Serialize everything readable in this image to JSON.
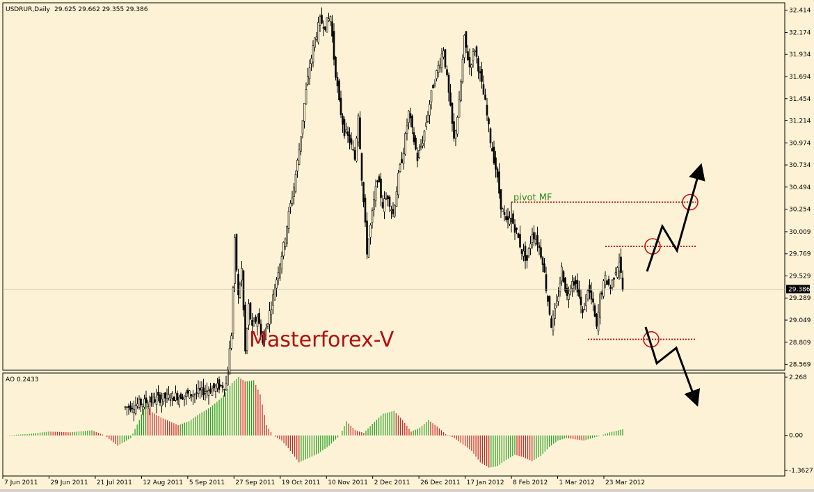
{
  "chart_data": [
    {
      "type": "candlestick",
      "title": "USDRUR,Daily",
      "ohlc_header": "29.625 29.662 29.355 29.386",
      "current_price": "29.386",
      "y_ticks": [
        "32.414",
        "32.174",
        "31.934",
        "31.694",
        "31.454",
        "31.214",
        "30.974",
        "30.734",
        "30.494",
        "30.254",
        "30.009",
        "29.769",
        "29.529",
        "29.289",
        "29.049",
        "28.809",
        "28.569"
      ],
      "ylim": [
        28.52,
        32.48
      ],
      "x_ticks": [
        "7 Jun 2011",
        "29 Jun 2011",
        "21 Jul 2011",
        "12 Aug 2011",
        "5 Sep 2011",
        "27 Sep 2011",
        "19 Oct 2011",
        "10 Nov 2011",
        "2 Dec 2011",
        "26 Dec 2011",
        "17 Jan 2012",
        "8 Feb 2012",
        "1 Mar 2012",
        "23 Mar 2012"
      ],
      "path_points": [
        [
          0,
          28.1
        ],
        [
          20,
          28.2
        ],
        [
          40,
          28.25
        ],
        [
          58,
          28.35
        ],
        [
          61,
          28.9
        ],
        [
          63,
          29.9
        ],
        [
          65,
          29.3
        ],
        [
          67,
          29.6
        ],
        [
          69,
          28.7
        ],
        [
          71,
          29.2
        ],
        [
          73,
          28.95
        ],
        [
          76,
          29.1
        ],
        [
          79,
          28.8
        ],
        [
          82,
          29.05
        ],
        [
          85,
          29.3
        ],
        [
          88,
          29.6
        ],
        [
          91,
          29.85
        ],
        [
          94,
          30.2
        ],
        [
          97,
          30.5
        ],
        [
          100,
          30.9
        ],
        [
          103,
          31.4
        ],
        [
          106,
          31.8
        ],
        [
          109,
          32.1
        ],
        [
          112,
          32.3
        ],
        [
          115,
          32.25
        ],
        [
          118,
          32.35
        ],
        [
          120,
          31.9
        ],
        [
          123,
          31.4
        ],
        [
          126,
          31.1
        ],
        [
          129,
          31.0
        ],
        [
          132,
          30.8
        ],
        [
          134,
          31.3
        ],
        [
          136,
          30.6
        ],
        [
          139,
          29.8
        ],
        [
          142,
          30.2
        ],
        [
          145,
          30.6
        ],
        [
          148,
          30.3
        ],
        [
          151,
          30.4
        ],
        [
          154,
          30.2
        ],
        [
          157,
          30.6
        ],
        [
          160,
          30.9
        ],
        [
          163,
          31.3
        ],
        [
          166,
          31.0
        ],
        [
          168,
          30.8
        ],
        [
          171,
          31.0
        ],
        [
          174,
          31.3
        ],
        [
          177,
          31.6
        ],
        [
          180,
          31.8
        ],
        [
          183,
          32.0
        ],
        [
          186,
          31.5
        ],
        [
          189,
          31.0
        ],
        [
          192,
          31.4
        ],
        [
          195,
          32.1
        ],
        [
          198,
          31.8
        ],
        [
          201,
          32.0
        ],
        [
          204,
          31.7
        ],
        [
          207,
          31.4
        ],
        [
          210,
          31.0
        ],
        [
          213,
          30.7
        ],
        [
          216,
          30.3
        ],
        [
          219,
          30.1
        ],
        [
          222,
          30.15
        ],
        [
          225,
          30.0
        ],
        [
          228,
          29.8
        ],
        [
          231,
          29.7
        ],
        [
          234,
          30.0
        ],
        [
          237,
          29.9
        ],
        [
          240,
          29.7
        ],
        [
          242,
          29.4
        ],
        [
          245,
          29.0
        ],
        [
          248,
          29.2
        ],
        [
          251,
          29.6
        ],
        [
          254,
          29.3
        ],
        [
          257,
          29.5
        ],
        [
          260,
          29.4
        ],
        [
          263,
          29.1
        ],
        [
          266,
          29.4
        ],
        [
          269,
          29.2
        ],
        [
          271,
          28.95
        ],
        [
          273,
          29.3
        ],
        [
          276,
          29.5
        ],
        [
          279,
          29.4
        ],
        [
          282,
          29.6
        ],
        [
          284,
          29.7
        ],
        [
          286,
          29.38
        ]
      ],
      "annotations": {
        "pivot_label": "pivot MF",
        "watermark": "Masterforex-V",
        "pivot_level": 30.33,
        "upper_level": 29.85,
        "lower_level": 28.84
      },
      "colors": {
        "background": "#fdf2d5",
        "candle": "#000000",
        "dotted_level": "#cc1111",
        "circle": "#cc1111",
        "watermark": "#b01010",
        "pivot_label": "#2e8b22"
      }
    },
    {
      "type": "bar",
      "indicator": "AO",
      "label": "AO 0.2433",
      "y_ticks": [
        "2.268",
        "0.00",
        "-1.3627"
      ],
      "ylim": [
        -1.3627,
        2.268
      ],
      "series_points": [
        [
          0,
          0.0
        ],
        [
          10,
          0.05
        ],
        [
          20,
          0.15
        ],
        [
          30,
          0.12
        ],
        [
          40,
          0.2
        ],
        [
          46,
          0.0
        ],
        [
          52,
          -0.4
        ],
        [
          58,
          -0.1
        ],
        [
          62,
          0.6
        ],
        [
          65,
          1.25
        ],
        [
          68,
          0.9
        ],
        [
          72,
          0.7
        ],
        [
          76,
          0.55
        ],
        [
          80,
          0.4
        ],
        [
          85,
          0.55
        ],
        [
          90,
          0.85
        ],
        [
          95,
          1.1
        ],
        [
          100,
          1.45
        ],
        [
          105,
          2.05
        ],
        [
          108,
          2.27
        ],
        [
          111,
          2.1
        ],
        [
          115,
          2.15
        ],
        [
          118,
          1.6
        ],
        [
          121,
          0.4
        ],
        [
          124,
          0.0
        ],
        [
          128,
          -0.2
        ],
        [
          132,
          -0.6
        ],
        [
          136,
          -1.05
        ],
        [
          140,
          -0.9
        ],
        [
          145,
          -0.7
        ],
        [
          150,
          -0.4
        ],
        [
          155,
          0.0
        ],
        [
          158,
          0.55
        ],
        [
          162,
          0.2
        ],
        [
          166,
          0.1
        ],
        [
          170,
          0.45
        ],
        [
          175,
          0.85
        ],
        [
          180,
          0.95
        ],
        [
          184,
          0.6
        ],
        [
          188,
          0.15
        ],
        [
          192,
          0.3
        ],
        [
          196,
          0.6
        ],
        [
          200,
          0.35
        ],
        [
          204,
          0.05
        ],
        [
          208,
          -0.1
        ],
        [
          212,
          -0.35
        ],
        [
          216,
          -0.6
        ],
        [
          220,
          -1.05
        ],
        [
          224,
          -1.25
        ],
        [
          228,
          -1.2
        ],
        [
          232,
          -0.95
        ],
        [
          236,
          -0.75
        ],
        [
          240,
          -0.85
        ],
        [
          244,
          -1.0
        ],
        [
          248,
          -0.8
        ],
        [
          252,
          -0.45
        ],
        [
          256,
          -0.2
        ],
        [
          260,
          -0.1
        ],
        [
          264,
          -0.15
        ],
        [
          268,
          -0.2
        ],
        [
          272,
          -0.1
        ],
        [
          276,
          0.0
        ],
        [
          280,
          0.12
        ],
        [
          286,
          0.24
        ]
      ],
      "colors": {
        "up": "#1f9e1f",
        "down": "#cc2222"
      }
    }
  ]
}
